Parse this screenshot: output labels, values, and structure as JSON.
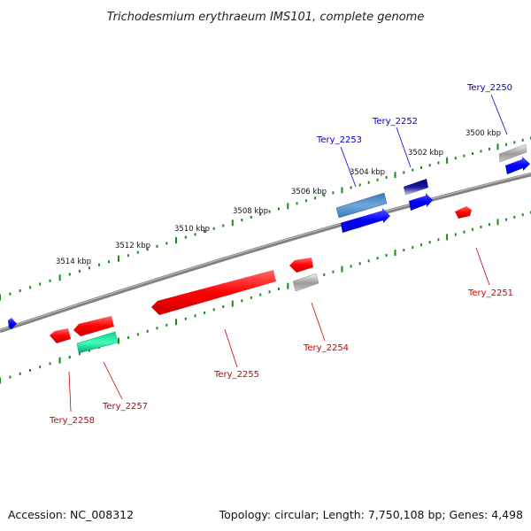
{
  "title": "Trichodesmium erythraeum IMS101, complete genome",
  "accession": "Accession: NC_008312",
  "topology": "Topology: circular; Length: 7,750,108 bp; Genes: 4,498",
  "colors": {
    "backbone": "#808080",
    "tick": "#1a8a1a",
    "forward_label": "#0000cc",
    "reverse_label": "#cc0000"
  },
  "kbp_labels": [
    "3500 kbp",
    "3502 kbp",
    "3504 kbp",
    "3506 kbp",
    "3508 kbp",
    "3510 kbp",
    "3512 kbp",
    "3514 kbp"
  ],
  "genes": [
    {
      "name": "Tery_2250",
      "strand": "forward",
      "color": "#0000ff"
    },
    {
      "name": "Tery_2252",
      "strand": "forward",
      "color": "#0000ff"
    },
    {
      "name": "Tery_2253",
      "strand": "forward",
      "color": "#0000ff"
    },
    {
      "name": "Tery_2251",
      "strand": "reverse",
      "color": "#ff0000"
    },
    {
      "name": "Tery_2254",
      "strand": "reverse",
      "color": "#ff0000"
    },
    {
      "name": "Tery_2255",
      "strand": "reverse",
      "color": "#ff0000"
    },
    {
      "name": "Tery_2257",
      "strand": "reverse",
      "color": "#ff0000"
    },
    {
      "name": "Tery_2258",
      "strand": "reverse",
      "color": "#ff0000"
    }
  ]
}
